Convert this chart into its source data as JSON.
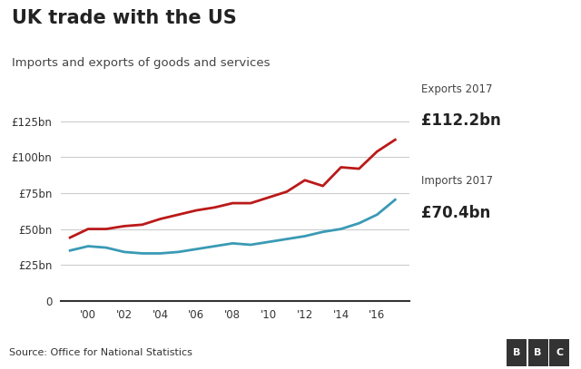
{
  "title": "UK trade with the US",
  "subtitle": "Imports and exports of goods and services",
  "source": "Source: Office for National Statistics",
  "exports_label": "Exports 2017",
  "exports_value": "£112.2bn",
  "imports_label": "Imports 2017",
  "imports_value": "£70.4bn",
  "exports_color": "#bb1919",
  "imports_color": "#3a9ab5",
  "background_color": "#ffffff",
  "years": [
    1999,
    2000,
    2001,
    2002,
    2003,
    2004,
    2005,
    2006,
    2007,
    2008,
    2009,
    2010,
    2011,
    2012,
    2013,
    2014,
    2015,
    2016,
    2017
  ],
  "exports": [
    44,
    50,
    50,
    52,
    53,
    57,
    60,
    63,
    65,
    68,
    68,
    72,
    76,
    84,
    80,
    93,
    92,
    104,
    112.2
  ],
  "imports": [
    35,
    38,
    37,
    34,
    33,
    33,
    34,
    36,
    38,
    40,
    39,
    41,
    43,
    45,
    48,
    50,
    54,
    60,
    70.4
  ],
  "yticks": [
    0,
    25,
    50,
    75,
    100,
    125
  ],
  "ytick_labels": [
    "0",
    "£25bn",
    "£50bn",
    "£75bn",
    "£100bn",
    "£125bn"
  ],
  "xtick_years": [
    2000,
    2002,
    2004,
    2006,
    2008,
    2010,
    2012,
    2014,
    2016
  ],
  "xtick_labels": [
    "'00",
    "'02",
    "'04",
    "'06",
    "'08",
    "'10",
    "'12",
    "'14",
    "'16"
  ],
  "ylim": [
    0,
    135
  ],
  "xlim": [
    1998.5,
    2017.8
  ],
  "grid_color": "#cccccc",
  "footer_bg": "#dddddd",
  "title_color": "#222222",
  "subtitle_color": "#444444",
  "axis_color": "#333333",
  "bbc_letters": [
    "B",
    "B",
    "C"
  ]
}
